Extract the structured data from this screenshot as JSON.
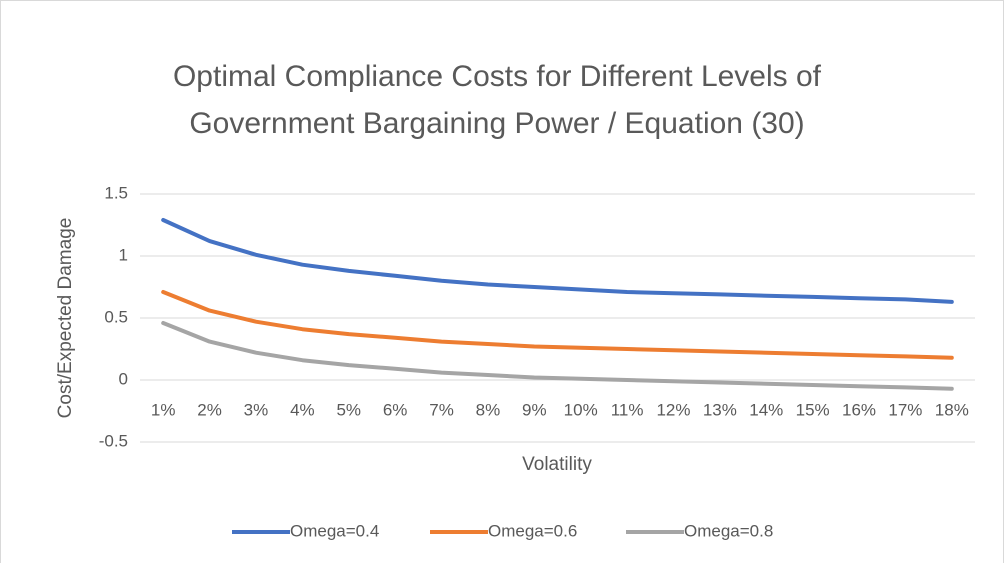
{
  "chart_data": {
    "type": "line",
    "title": [
      "Optimal Compliance Costs for Different Levels of",
      "Government Bargaining Power / Equation (30)"
    ],
    "x_label": "Volatility",
    "y_label": "Cost/Expected Damage",
    "categories": [
      "1%",
      "2%",
      "3%",
      "4%",
      "5%",
      "6%",
      "7%",
      "8%",
      "9%",
      "10%",
      "11%",
      "12%",
      "13%",
      "14%",
      "15%",
      "16%",
      "17%",
      "18%"
    ],
    "series": [
      {
        "name": "Omega=0.4",
        "color": "#4472c4",
        "values": [
          1.29,
          1.12,
          1.01,
          0.93,
          0.88,
          0.84,
          0.8,
          0.77,
          0.75,
          0.73,
          0.71,
          0.7,
          0.69,
          0.68,
          0.67,
          0.66,
          0.65,
          0.63
        ]
      },
      {
        "name": "Omega=0.6",
        "color": "#ed7d31",
        "values": [
          0.71,
          0.56,
          0.47,
          0.41,
          0.37,
          0.34,
          0.31,
          0.29,
          0.27,
          0.26,
          0.25,
          0.24,
          0.23,
          0.22,
          0.21,
          0.2,
          0.19,
          0.18
        ]
      },
      {
        "name": "Omega=0.8",
        "color": "#a5a5a5",
        "values": [
          0.46,
          0.31,
          0.22,
          0.16,
          0.12,
          0.09,
          0.06,
          0.04,
          0.02,
          0.01,
          0.0,
          -0.01,
          -0.02,
          -0.03,
          -0.04,
          -0.05,
          -0.06,
          -0.07
        ]
      }
    ],
    "ylim": [
      -0.5,
      1.5
    ],
    "yticks": [
      -0.5,
      0,
      0.5,
      1,
      1.5
    ],
    "grid": true,
    "legend": "bottom"
  }
}
